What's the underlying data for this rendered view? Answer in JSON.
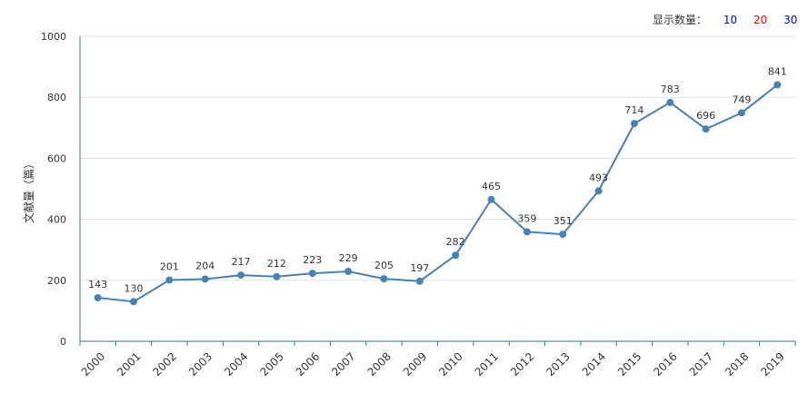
{
  "controls": {
    "display_count_label": "显示数量：",
    "options": [
      {
        "label": "10",
        "color": "#0000ff"
      },
      {
        "label": "20",
        "color": "#ff0000"
      },
      {
        "label": "30",
        "color": "#0000ff"
      }
    ]
  },
  "chart_data": {
    "type": "line",
    "xlabel": "",
    "ylabel": "文献量（篇）",
    "ylim": [
      0,
      1000
    ],
    "yticks": [
      0,
      200,
      400,
      600,
      800,
      1000
    ],
    "categories": [
      "2000",
      "2001",
      "2002",
      "2003",
      "2004",
      "2005",
      "2006",
      "2007",
      "2008",
      "2009",
      "2010",
      "2011",
      "2012",
      "2013",
      "2014",
      "2015",
      "2016",
      "2017",
      "2018",
      "2019"
    ],
    "series": [
      {
        "values": [
          143,
          130,
          201,
          204,
          217,
          212,
          223,
          229,
          205,
          197,
          282,
          465,
          359,
          351,
          493,
          714,
          783,
          696,
          749,
          841
        ],
        "color": "#4682b4"
      }
    ],
    "grid": true,
    "legend": "none"
  }
}
